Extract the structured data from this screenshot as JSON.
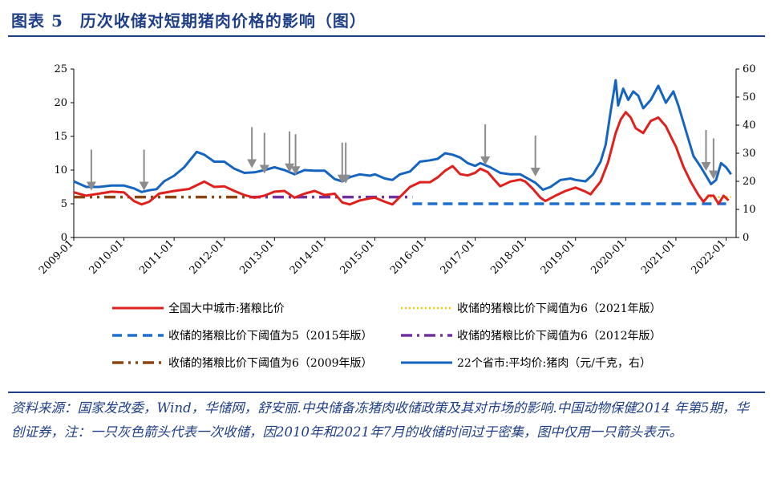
{
  "title": "图表 5　历次收储对短期猪肉价格的影响（图）",
  "source_text": "资料来源：国家发改委，Wind，华储网，舒安丽.中央储备冻猪肉收储政策及其对市场的影响.中国动物保健2014 年第5期，华创证券，注：一只灰色箭头代表一次收储，因2010年和2021年7月的收储时间过于密集，图中仅用一只箭头表示。",
  "chart_data": {
    "type": "line",
    "x_ticks": [
      "2009-01",
      "2010-01",
      "2011-01",
      "2012-01",
      "2013-01",
      "2014-01",
      "2015-01",
      "2016-01",
      "2017-01",
      "2018-01",
      "2019-01",
      "2020-01",
      "2021-01",
      "2022-01"
    ],
    "y_left": {
      "min": 0,
      "max": 25,
      "ticks": [
        0,
        5,
        10,
        15,
        20,
        25
      ]
    },
    "y_right": {
      "min": 0,
      "max": 60,
      "ticks": [
        0,
        10,
        20,
        30,
        40,
        50,
        60
      ]
    },
    "series": [
      {
        "name": "全国大中城市:猪粮比价",
        "axis": "left",
        "color": "#e0201d",
        "style": "solid",
        "x": [
          2009.0,
          2009.25,
          2009.5,
          2009.75,
          2010.0,
          2010.2,
          2010.35,
          2010.5,
          2010.7,
          2011.0,
          2011.3,
          2011.6,
          2011.8,
          2012.0,
          2012.2,
          2012.4,
          2012.6,
          2012.8,
          2013.0,
          2013.2,
          2013.4,
          2013.6,
          2013.8,
          2014.0,
          2014.2,
          2014.35,
          2014.5,
          2014.7,
          2014.9,
          2015.0,
          2015.2,
          2015.35,
          2015.5,
          2015.7,
          2015.9,
          2016.1,
          2016.25,
          2016.4,
          2016.55,
          2016.7,
          2016.85,
          2017.0,
          2017.1,
          2017.25,
          2017.4,
          2017.5,
          2017.7,
          2017.9,
          2018.0,
          2018.15,
          2018.3,
          2018.4,
          2018.6,
          2018.8,
          2019.0,
          2019.2,
          2019.3,
          2019.5,
          2019.65,
          2019.8,
          2019.9,
          2020.0,
          2020.1,
          2020.2,
          2020.35,
          2020.5,
          2020.65,
          2020.8,
          2020.95,
          2021.0,
          2021.15,
          2021.3,
          2021.45,
          2021.55,
          2021.65,
          2021.75,
          2021.85,
          2021.95,
          2022.05
        ],
        "values": [
          6.7,
          6.2,
          6.5,
          6.8,
          6.7,
          5.4,
          4.9,
          5.3,
          6.5,
          6.9,
          7.2,
          8.3,
          7.5,
          7.6,
          6.9,
          6.3,
          5.9,
          6.2,
          6.8,
          6.9,
          5.9,
          6.5,
          6.9,
          6.3,
          6.5,
          5.2,
          4.9,
          5.5,
          5.8,
          5.9,
          5.3,
          4.9,
          6.0,
          7.5,
          8.2,
          8.2,
          8.9,
          9.9,
          10.6,
          9.4,
          9.2,
          9.6,
          10.2,
          9.7,
          8.4,
          7.6,
          8.3,
          8.6,
          8.3,
          7.2,
          5.9,
          5.4,
          6.2,
          6.9,
          7.4,
          6.8,
          6.4,
          8.3,
          11.2,
          15.5,
          17.5,
          18.6,
          17.8,
          16.2,
          15.5,
          17.3,
          17.8,
          16.5,
          14.2,
          13.5,
          10.5,
          8.2,
          6.3,
          5.3,
          6.2,
          6.2,
          5.0,
          6.2,
          5.5
        ]
      },
      {
        "name": "22个省市:平均价:猪肉（元/千克，右）",
        "axis": "right",
        "color": "#1565c0",
        "style": "solid",
        "x": [
          2009.0,
          2009.25,
          2009.5,
          2009.75,
          2010.0,
          2010.2,
          2010.35,
          2010.5,
          2010.65,
          2010.8,
          2011.0,
          2011.2,
          2011.45,
          2011.6,
          2011.8,
          2012.0,
          2012.2,
          2012.4,
          2012.6,
          2012.8,
          2013.0,
          2013.2,
          2013.4,
          2013.6,
          2013.8,
          2014.0,
          2014.2,
          2014.35,
          2014.5,
          2014.7,
          2014.9,
          2015.0,
          2015.2,
          2015.35,
          2015.5,
          2015.7,
          2015.9,
          2016.1,
          2016.25,
          2016.4,
          2016.55,
          2016.7,
          2016.85,
          2017.0,
          2017.1,
          2017.3,
          2017.5,
          2017.7,
          2017.9,
          2018.0,
          2018.2,
          2018.35,
          2018.5,
          2018.7,
          2018.9,
          2019.0,
          2019.2,
          2019.35,
          2019.5,
          2019.6,
          2019.7,
          2019.8,
          2019.85,
          2019.95,
          2020.05,
          2020.15,
          2020.25,
          2020.35,
          2020.5,
          2020.65,
          2020.8,
          2020.95,
          2021.05,
          2021.2,
          2021.35,
          2021.5,
          2021.6,
          2021.7,
          2021.8,
          2021.9,
          2022.0,
          2022.1
        ],
        "values": [
          20.0,
          18.0,
          18.0,
          18.5,
          18.5,
          17.5,
          16.2,
          16.8,
          17.2,
          20.0,
          22.0,
          25.0,
          30.5,
          29.5,
          27.0,
          27.0,
          24.5,
          23.0,
          23.2,
          24.0,
          25.0,
          24.0,
          22.5,
          24.0,
          23.8,
          23.8,
          20.8,
          20.0,
          21.5,
          22.5,
          22.0,
          22.5,
          21.0,
          20.5,
          22.5,
          23.5,
          27.0,
          27.5,
          28.0,
          30.0,
          29.5,
          28.5,
          26.5,
          25.5,
          26.5,
          25.0,
          23.0,
          22.5,
          22.5,
          21.5,
          19.5,
          17.0,
          18.0,
          20.5,
          21.0,
          20.5,
          20.0,
          22.5,
          27.0,
          33.0,
          45.0,
          56.0,
          47.0,
          53.0,
          49.0,
          52.0,
          50.5,
          46.0,
          49.0,
          54.0,
          48.0,
          52.0,
          47.0,
          38.0,
          29.0,
          25.0,
          22.0,
          19.0,
          20.5,
          26.5,
          25.0,
          22.5
        ]
      },
      {
        "name": "收储的猪粮比价下阈值为6（2021年版）",
        "axis": "left",
        "color": "#f2c80f",
        "style": "dotted",
        "x": [
          2021.6,
          2022.1
        ],
        "values": [
          6,
          6
        ]
      },
      {
        "name": "收储的猪粮比价下阈值为5（2015年版）",
        "axis": "left",
        "color": "#1f6fd0",
        "style": "dashed",
        "x": [
          2015.75,
          2022.0
        ],
        "values": [
          5,
          5
        ]
      },
      {
        "name": "收储的猪粮比价下阈值为6（2012年版）",
        "axis": "left",
        "color": "#7030a0",
        "style": "dashdot",
        "x": [
          2012.5,
          2015.75
        ],
        "values": [
          6,
          6
        ]
      },
      {
        "name": "收储的猪粮比价下阈值为6（2009年版）",
        "axis": "left",
        "color": "#8b4513",
        "style": "dashdotdot",
        "x": [
          2009.0,
          2012.5
        ],
        "values": [
          6,
          6
        ]
      }
    ],
    "arrows": [
      {
        "x": 2009.35,
        "y_right": 17
      },
      {
        "x": 2010.4,
        "y_right": 17
      },
      {
        "x": 2012.55,
        "y_right": 25
      },
      {
        "x": 2012.8,
        "y_right": 23
      },
      {
        "x": 2013.3,
        "y_right": 23.5
      },
      {
        "x": 2013.42,
        "y_right": 22.5
      },
      {
        "x": 2014.35,
        "y_right": 19.5
      },
      {
        "x": 2014.42,
        "y_right": 19.5
      },
      {
        "x": 2017.2,
        "y_right": 26
      },
      {
        "x": 2018.2,
        "y_right": 22
      },
      {
        "x": 2021.6,
        "y_right": 24
      },
      {
        "x": 2021.75,
        "y_right": 21
      }
    ]
  },
  "legend": {
    "items": [
      {
        "label": "全国大中城市:猪粮比价"
      },
      {
        "label": "收储的猪粮比价下阈值为6（2021年版）"
      },
      {
        "label": "收储的猪粮比价下阈值为5（2015年版）"
      },
      {
        "label": "收储的猪粮比价下阈值为6（2012年版）"
      },
      {
        "label": "收储的猪粮比价下阈值为6（2009年版）"
      },
      {
        "label": "22个省市:平均价:猪肉（元/千克，右）"
      }
    ]
  }
}
